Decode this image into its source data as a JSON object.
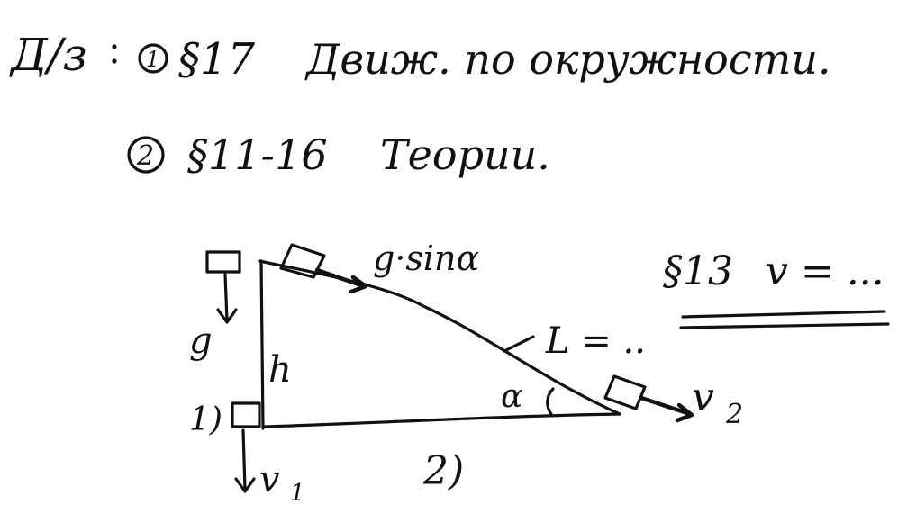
{
  "homework": {
    "label": "Д/з",
    "items": [
      {
        "number": "1",
        "section": "§17",
        "text": "Движ. по окружности."
      },
      {
        "number": "2",
        "section": "§11-16",
        "text": "Теории."
      }
    ]
  },
  "diagram": {
    "acceleration_label": "g·sinα",
    "gravity_label": "g",
    "height_label": "h",
    "angle_label": "α",
    "length_label": "L = ..",
    "velocity_1_label": "v",
    "velocity_1_subscript": "1",
    "velocity_2_label": "v",
    "velocity_2_subscript": "2",
    "case_1_label": "1)",
    "case_2_label": "2)"
  },
  "note": {
    "section": "§13",
    "text": "v = ..."
  },
  "colors": {
    "ink": "#111111",
    "paper": "#ffffff"
  }
}
